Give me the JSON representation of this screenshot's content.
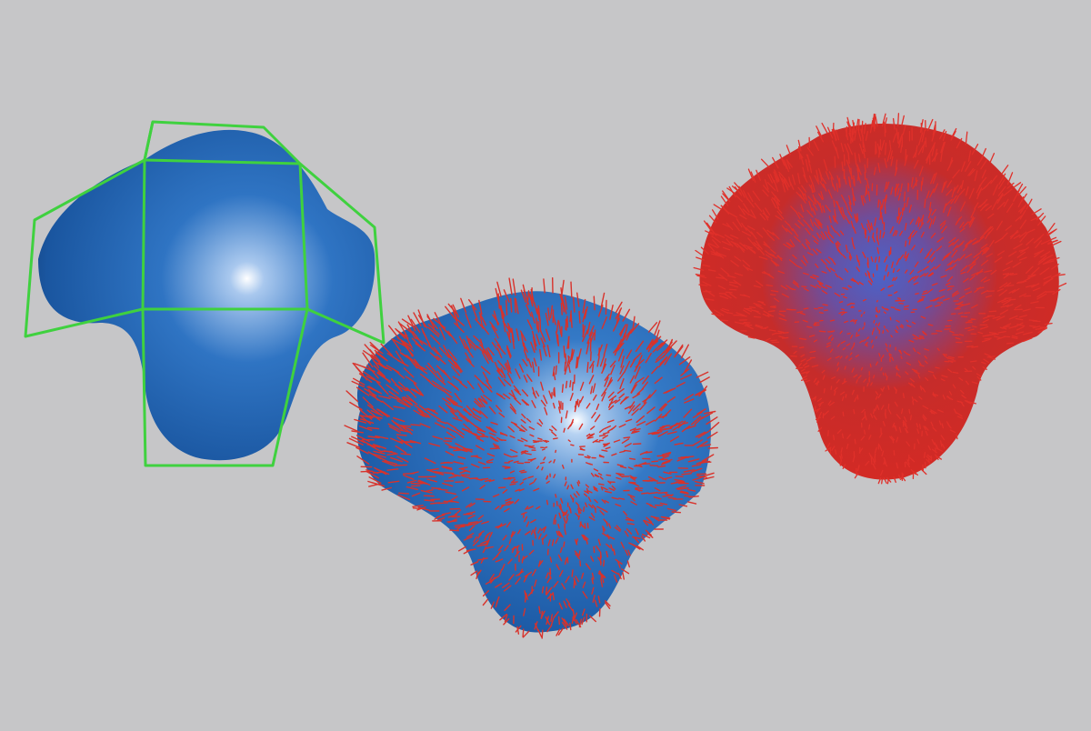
{
  "background": "#c6c6c8",
  "surfaces": [
    {
      "name": "surface-with-control-net",
      "surface_color": "#1f5fa8",
      "shadow_color": "#0a2046",
      "highlight_color": "#ffffff",
      "control_net_color": "#3fd13f",
      "has_normals": false
    },
    {
      "name": "surface-with-normals",
      "surface_color": "#2366b0",
      "shadow_color": "#123d78",
      "highlight_color": "#ffffff",
      "normal_color": "#d8322b",
      "has_normals": true
    },
    {
      "name": "surface-covered-by-normals",
      "surface_color": "#d42a24",
      "shadow_color": "#b31b17",
      "core_color": "#4a63c9",
      "normal_color": "#e0302a",
      "has_normals": true
    }
  ]
}
